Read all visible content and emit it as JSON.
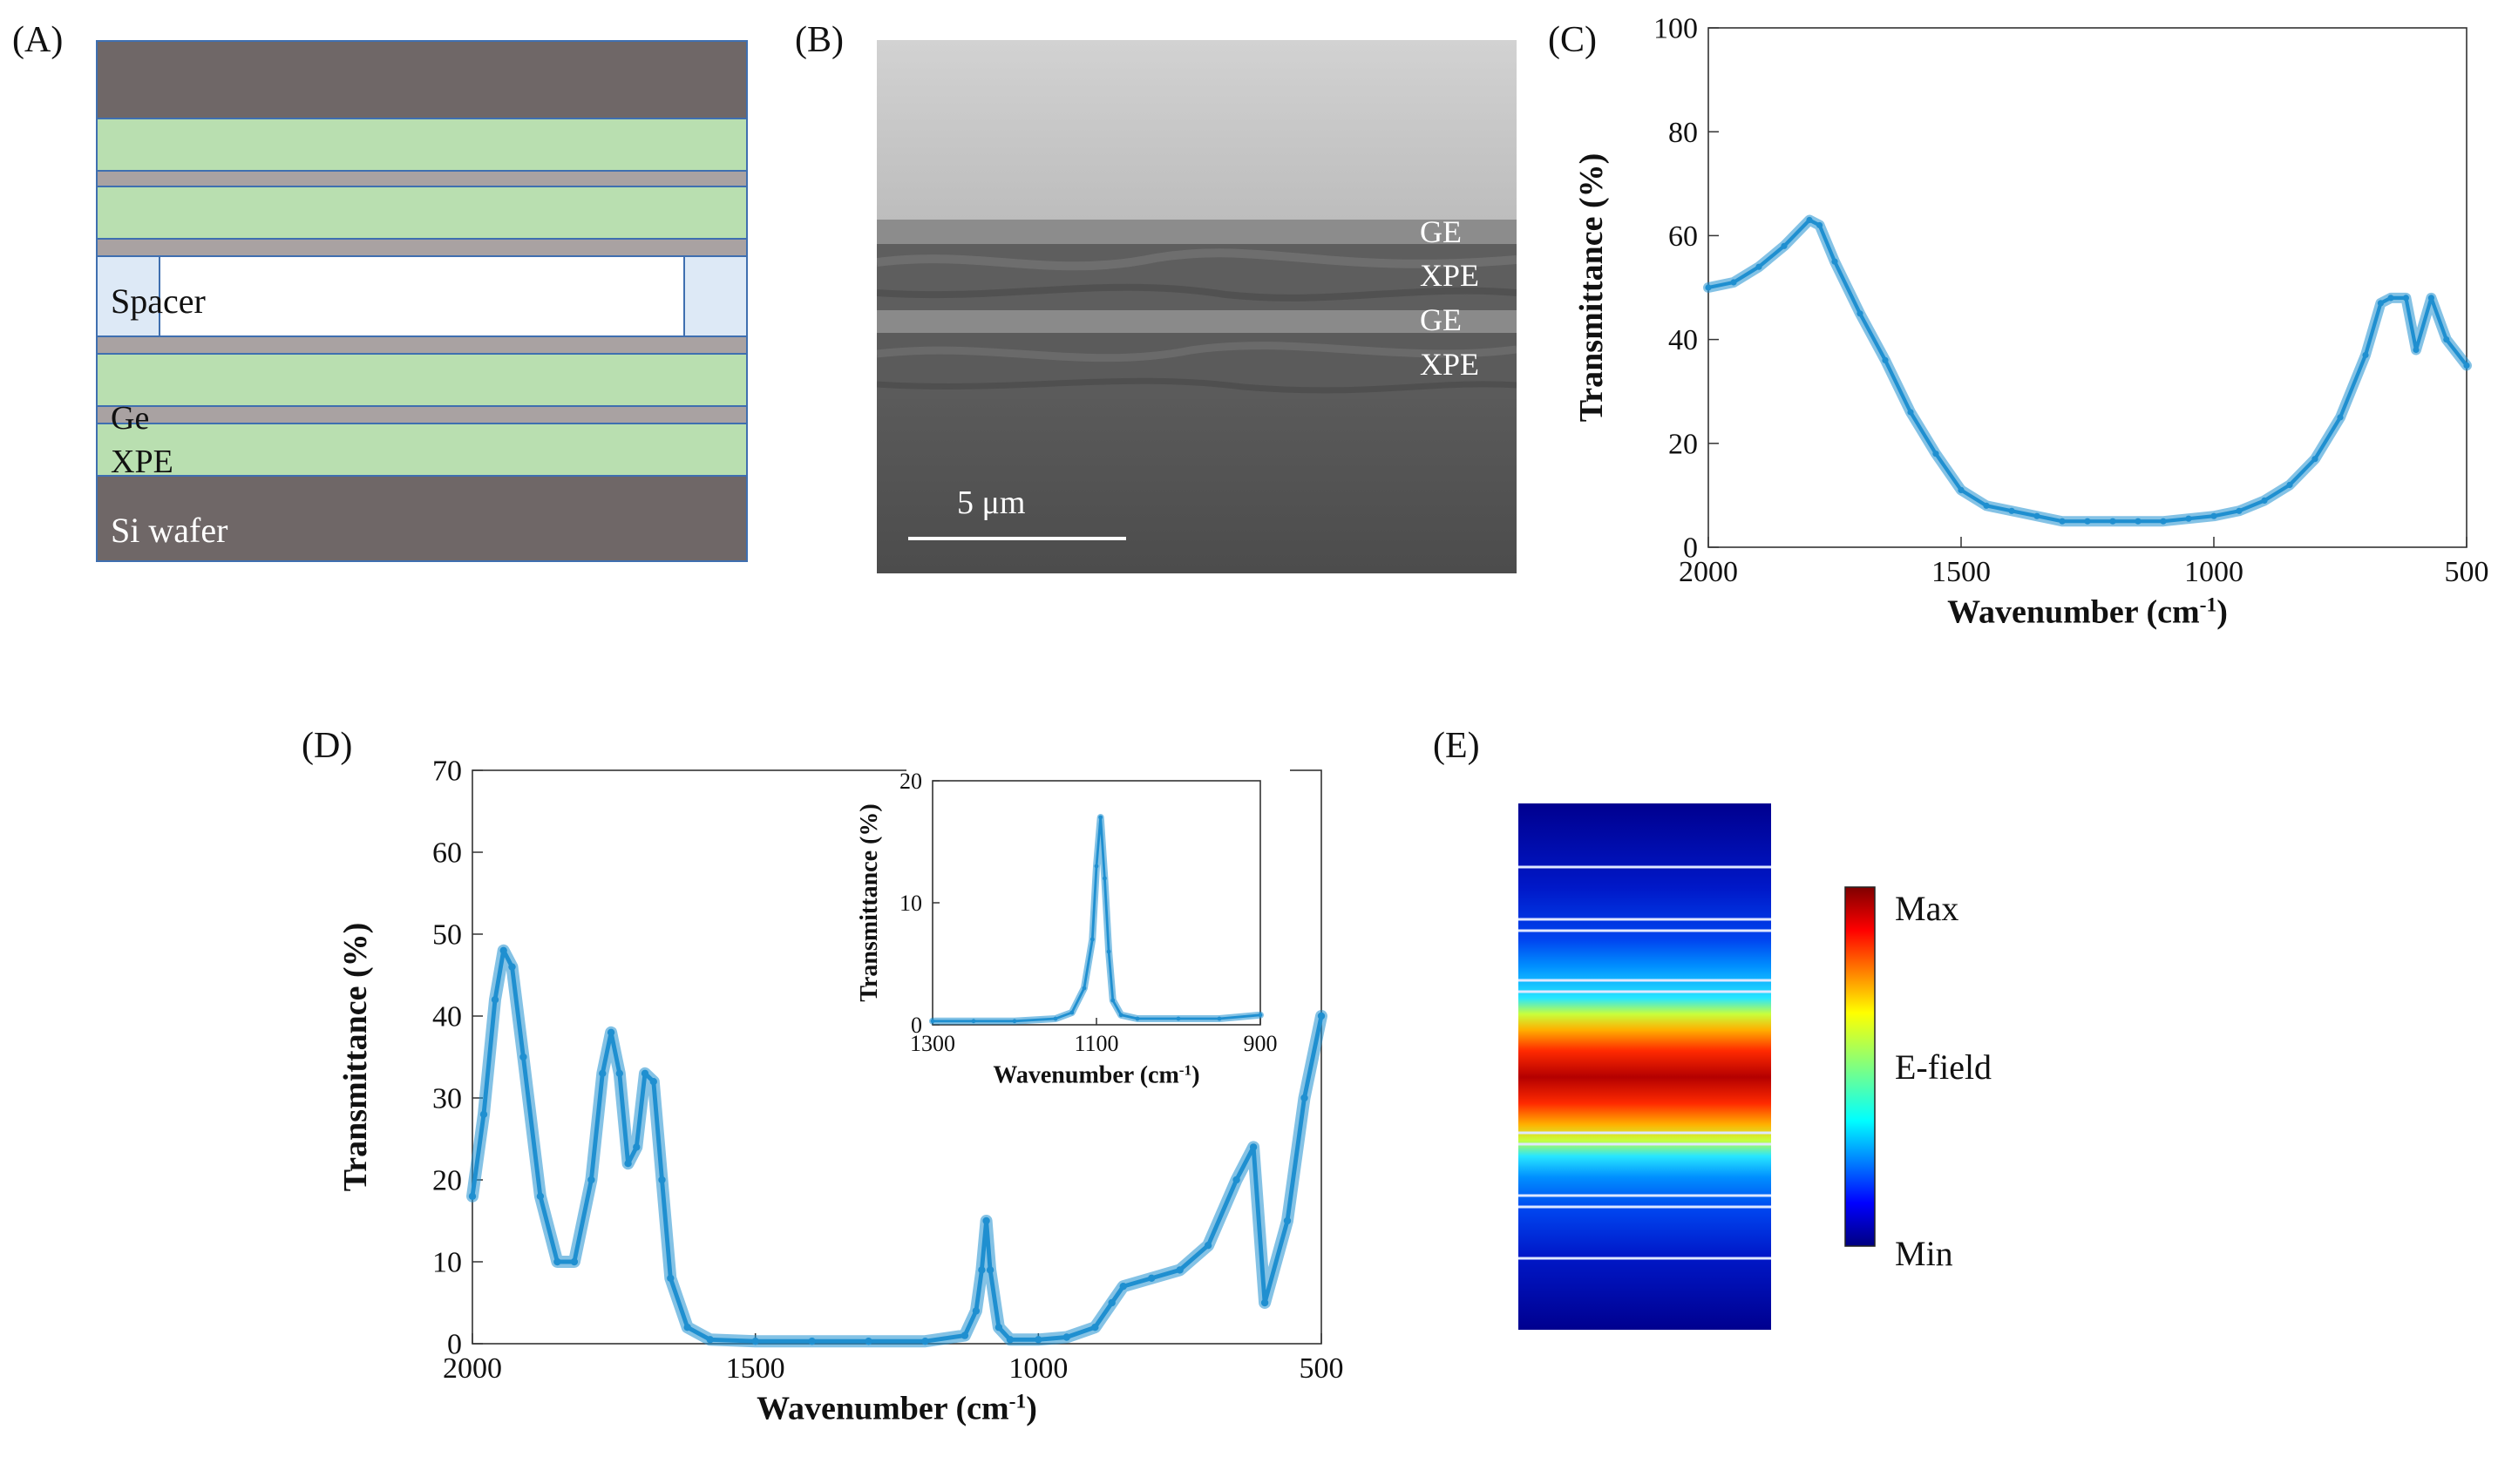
{
  "panels": {
    "a": {
      "label": "(A)",
      "texts": {
        "spacer": "Spacer",
        "ge": "Ge",
        "xpe": "XPE",
        "si": "Si wafer"
      },
      "colors": {
        "substrate": "#6f6767",
        "xpe": "#b9dfb0",
        "ge": "#a9a2a2",
        "spacer": "#dde9f6",
        "border": "#3f6fb0"
      }
    },
    "b": {
      "label": "(B)",
      "layers": [
        "GE",
        "XPE",
        "GE",
        "XPE"
      ],
      "scalebar": "5 μm"
    },
    "c": {
      "label": "(C)"
    },
    "d": {
      "label": "(D)"
    },
    "e": {
      "label": "(E)",
      "colorbar": {
        "max": "Max",
        "mid": "E-field",
        "min": "Min"
      }
    }
  },
  "chart_data": [
    {
      "id": "C",
      "type": "line",
      "xlabel": "Wavenumber (cm",
      "xlabel_sup": "-1",
      "xlabel_end": ")",
      "ylabel": "Transmittance (%)",
      "xlim": [
        2000,
        500
      ],
      "ylim": [
        0,
        100
      ],
      "xticks": [
        2000,
        1500,
        1000,
        500
      ],
      "yticks": [
        0,
        20,
        40,
        60,
        80,
        100
      ],
      "color": "#1f8fd0",
      "x": [
        2000,
        1950,
        1900,
        1850,
        1800,
        1780,
        1750,
        1700,
        1650,
        1600,
        1550,
        1500,
        1450,
        1400,
        1350,
        1300,
        1250,
        1200,
        1150,
        1100,
        1050,
        1000,
        950,
        900,
        850,
        800,
        750,
        700,
        670,
        650,
        620,
        600,
        570,
        540,
        500
      ],
      "y": [
        50,
        51,
        54,
        58,
        63,
        62,
        55,
        45,
        36,
        26,
        18,
        11,
        8,
        7,
        6,
        5,
        5,
        5,
        5,
        5,
        5.5,
        6,
        7,
        9,
        12,
        17,
        25,
        37,
        47,
        48,
        48,
        38,
        48,
        40,
        35
      ]
    },
    {
      "id": "D",
      "type": "line",
      "xlabel": "Wavenumber (cm",
      "xlabel_sup": "-1",
      "xlabel_end": ")",
      "ylabel": "Transmittance (%)",
      "xlim": [
        2000,
        500
      ],
      "ylim": [
        0,
        70
      ],
      "xticks": [
        2000,
        1500,
        1000,
        500
      ],
      "yticks": [
        0,
        10,
        20,
        30,
        40,
        50,
        60,
        70
      ],
      "color": "#1f8fd0",
      "x": [
        2000,
        1980,
        1960,
        1945,
        1930,
        1910,
        1880,
        1850,
        1820,
        1790,
        1770,
        1755,
        1740,
        1725,
        1710,
        1695,
        1680,
        1665,
        1650,
        1620,
        1580,
        1500,
        1400,
        1300,
        1200,
        1130,
        1110,
        1100,
        1092,
        1085,
        1070,
        1050,
        1000,
        950,
        900,
        870,
        850,
        800,
        750,
        700,
        650,
        620,
        600,
        560,
        530,
        500
      ],
      "y": [
        18,
        28,
        42,
        48,
        46,
        35,
        18,
        10,
        10,
        20,
        33,
        38,
        33,
        22,
        24,
        33,
        32,
        20,
        8,
        2,
        0.5,
        0.3,
        0.3,
        0.3,
        0.3,
        1,
        4,
        9,
        15,
        9,
        2,
        0.5,
        0.5,
        0.8,
        2,
        5,
        7,
        8,
        9,
        12,
        20,
        24,
        5,
        15,
        30,
        40
      ]
    },
    {
      "id": "D-inset",
      "type": "line",
      "xlabel": "Wavenumber (cm",
      "xlabel_sup": "-1",
      "xlabel_end": ")",
      "ylabel": "Transmittance (%)",
      "xlim": [
        1300,
        900
      ],
      "ylim": [
        0,
        20
      ],
      "xticks": [
        1300,
        1100,
        900
      ],
      "yticks": [
        0,
        10,
        20
      ],
      "color": "#1f8fd0",
      "x": [
        1300,
        1250,
        1200,
        1150,
        1130,
        1115,
        1105,
        1100,
        1095,
        1090,
        1085,
        1080,
        1070,
        1050,
        1000,
        950,
        900
      ],
      "y": [
        0.3,
        0.3,
        0.3,
        0.5,
        1,
        3,
        7,
        13,
        17,
        12,
        6,
        2,
        0.8,
        0.5,
        0.5,
        0.5,
        0.8
      ]
    }
  ]
}
